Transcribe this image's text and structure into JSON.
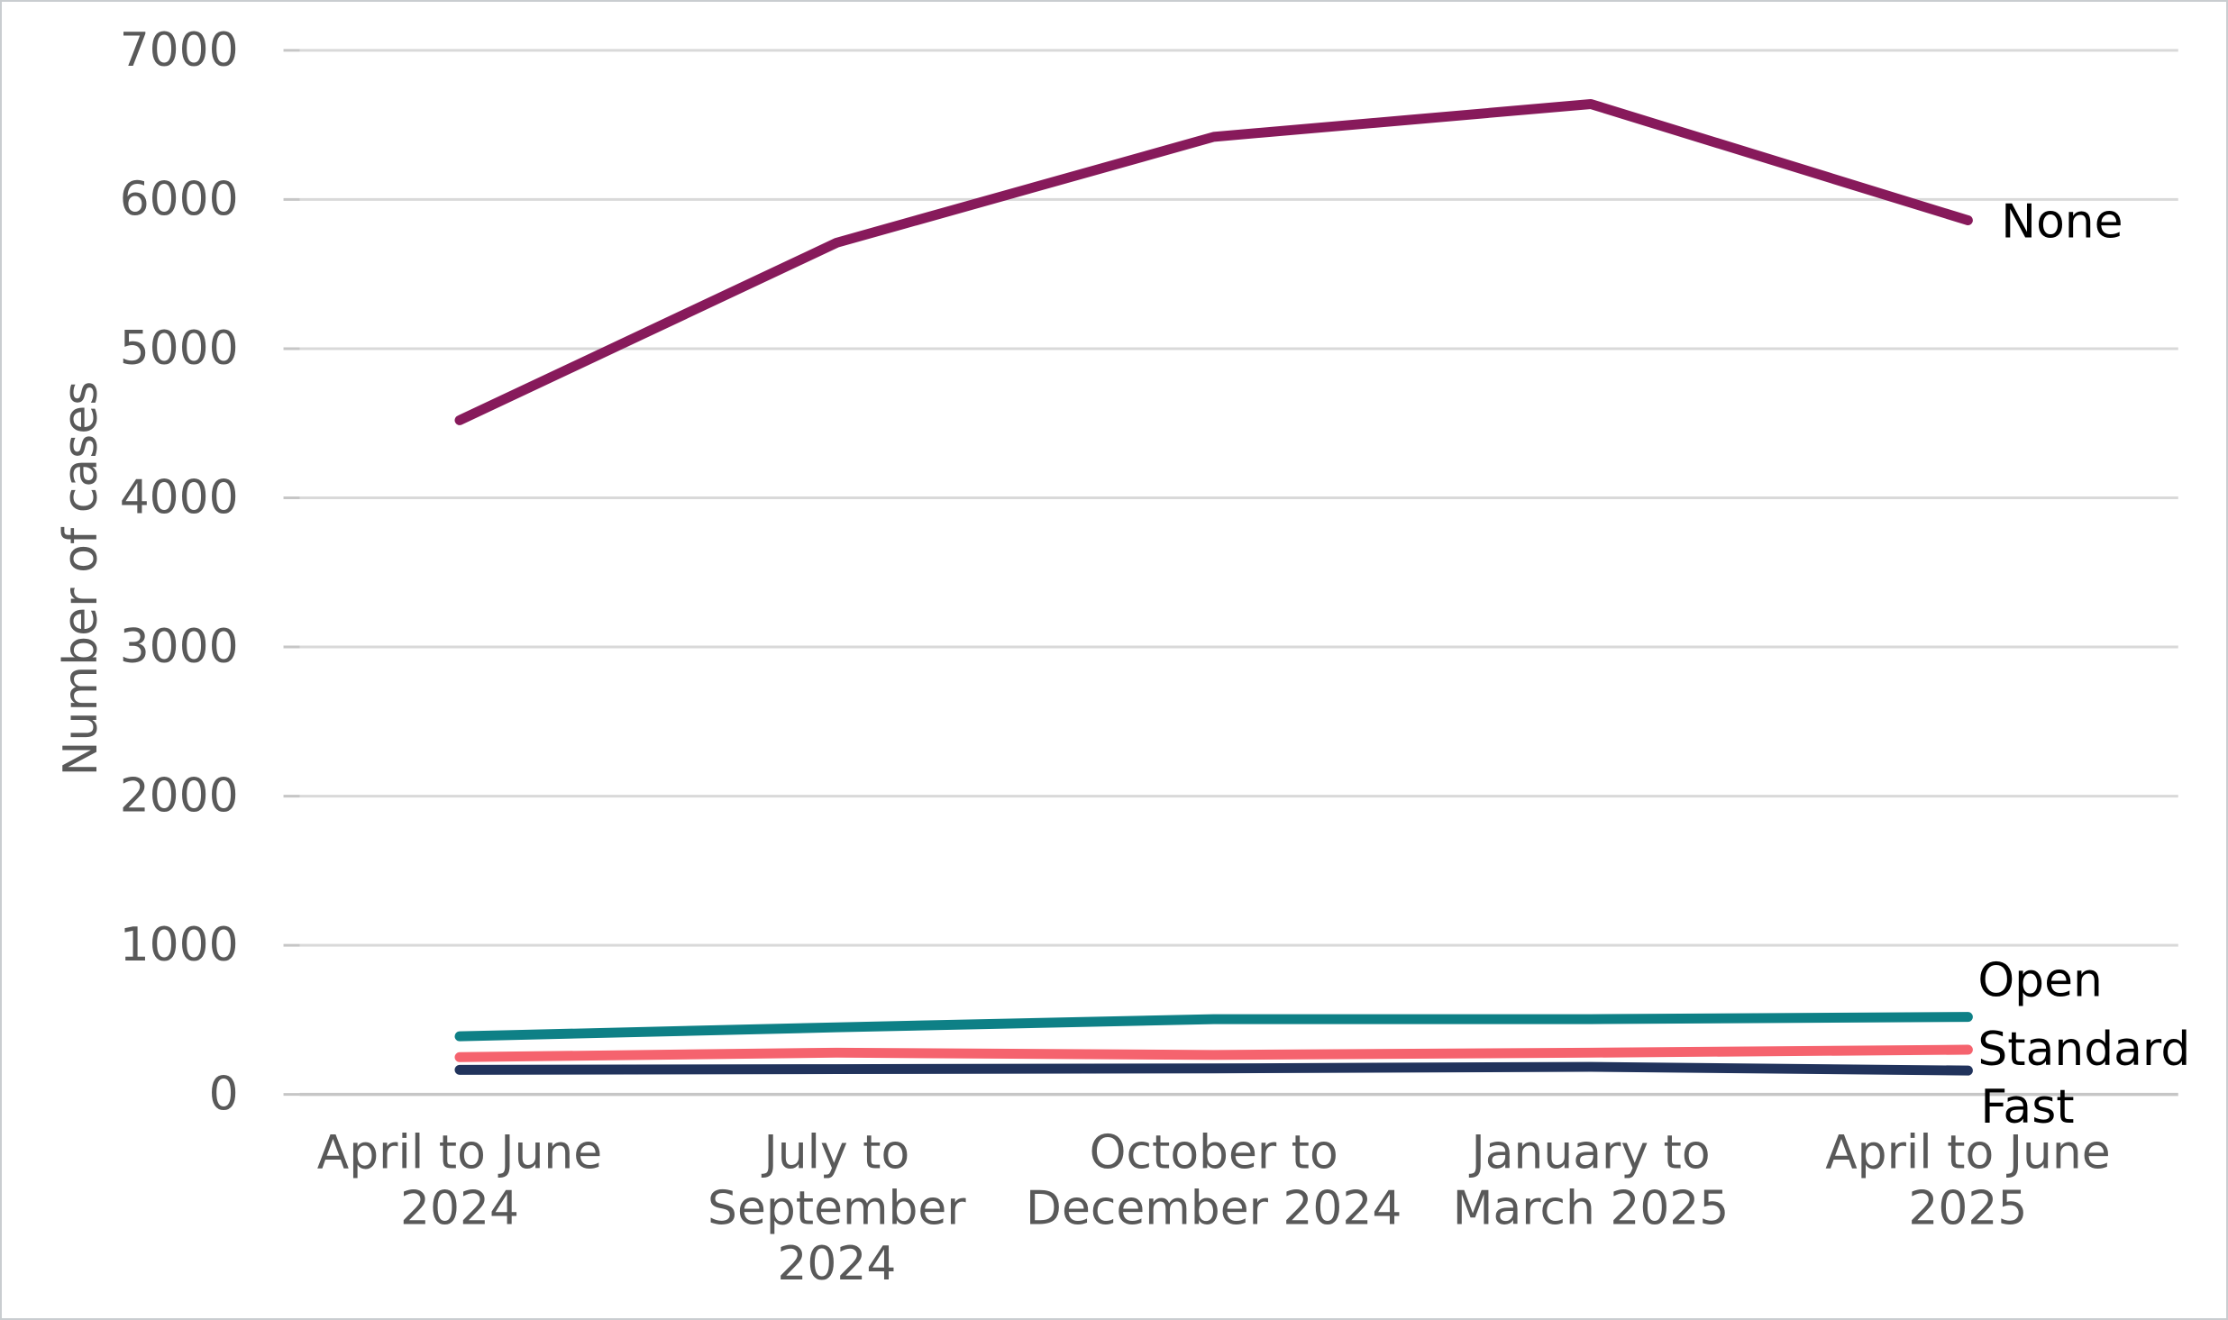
{
  "chart_data": {
    "type": "line",
    "title": "",
    "xlabel": "",
    "ylabel": "Number of cases",
    "ylim": [
      0,
      7000
    ],
    "yticks": [
      0,
      1000,
      2000,
      3000,
      4000,
      5000,
      6000,
      7000
    ],
    "grid": "horizontal",
    "legend_position": "labels-at-line-ends",
    "categories": [
      "April to June 2024",
      "July to September 2024",
      "October to December 2024",
      "January to March 2025",
      "April to June 2025"
    ],
    "category_label_lines": [
      [
        "April to June",
        "2024"
      ],
      [
        "July to",
        "September",
        "2024"
      ],
      [
        "October to",
        "December 2024"
      ],
      [
        "January to",
        "March 2025"
      ],
      [
        "April to June",
        "2025"
      ]
    ],
    "series": [
      {
        "name": "None",
        "color": "#871A5B",
        "values": [
          4520,
          5710,
          6420,
          6640,
          5860
        ]
      },
      {
        "name": "Open",
        "color": "#0E8086",
        "values": [
          390,
          450,
          505,
          505,
          520
        ]
      },
      {
        "name": "Standard",
        "color": "#F5636E",
        "values": [
          250,
          280,
          265,
          280,
          300
        ]
      },
      {
        "name": "Fast",
        "color": "#21335C",
        "values": [
          165,
          170,
          175,
          185,
          160
        ]
      }
    ]
  },
  "colors": {
    "background": "#FFFFFF",
    "gridline": "#D9D9D9",
    "axis_line": "#C6C6C6",
    "tick_mark": "#C6C6C6",
    "axis_text": "#595959",
    "series_label_text": "#000000",
    "border": "#C9CDD0"
  }
}
